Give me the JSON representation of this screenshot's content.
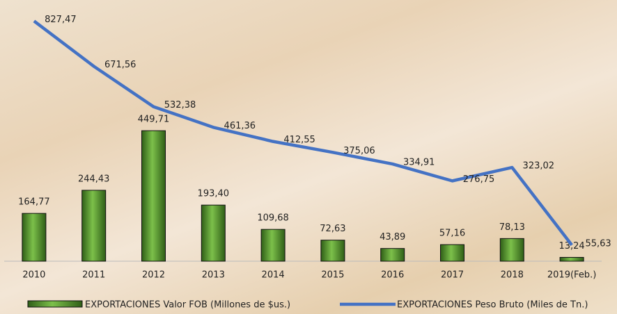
{
  "chart_data": {
    "type": "bar-line",
    "categories": [
      "2010",
      "2011",
      "2012",
      "2013",
      "2014",
      "2015",
      "2016",
      "2017",
      "2018",
      "2019(Feb.)"
    ],
    "series": [
      {
        "name": "EXPORTACIONES Valor FOB (Millones de $us.)",
        "type": "bar",
        "color": "#4e8a2a",
        "values": [
          164.77,
          244.43,
          449.71,
          193.4,
          109.68,
          72.63,
          43.89,
          57.16,
          78.13,
          13.24
        ],
        "value_labels": [
          "164,77",
          "244,43",
          "449,71",
          "193,40",
          "109,68",
          "72,63",
          "43,89",
          "57,16",
          "78,13",
          "13,24"
        ]
      },
      {
        "name": "EXPORTACIONES Peso Bruto (Miles de Tn.)",
        "type": "line",
        "color": "#4472c4",
        "values": [
          827.47,
          671.56,
          532.38,
          461.36,
          412.55,
          375.06,
          334.91,
          276.75,
          323.02,
          55.63
        ],
        "value_labels": [
          "827,47",
          "671,56",
          "532,38",
          "461,36",
          "412,55",
          "375,06",
          "334,91",
          "276,75",
          "323,02",
          "55,63"
        ]
      }
    ],
    "ylim": [
      0,
      900
    ]
  }
}
